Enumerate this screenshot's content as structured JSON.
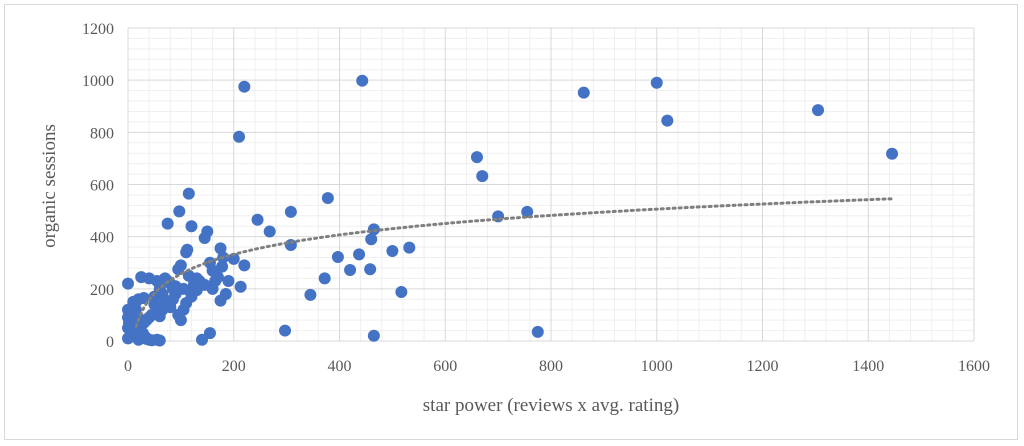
{
  "chart_data": {
    "type": "scatter",
    "title": "",
    "xlabel": "star power (reviews x avg. rating)",
    "ylabel": "organic sessions",
    "xlim": [
      0,
      1600
    ],
    "ylim": [
      0,
      1200
    ],
    "x_ticks": [
      0,
      200,
      400,
      600,
      800,
      1000,
      1200,
      1400,
      1600
    ],
    "y_ticks": [
      0,
      200,
      400,
      600,
      800,
      1000,
      1200
    ],
    "x_tick_labels": [
      "0",
      "200",
      "400",
      "600",
      "800",
      "1000",
      "1200",
      "1400",
      "1600"
    ],
    "y_tick_labels": [
      "0",
      "200",
      "400",
      "600",
      "800",
      "1000",
      "1200"
    ],
    "grid": true,
    "legend": "none",
    "colors": {
      "points": "#4472c4",
      "trendline": "#7f7f7f",
      "grid": "#d9d9d9"
    },
    "trendline": {
      "type": "logarithmic",
      "style": "dotted",
      "x_range": [
        0,
        1445
      ]
    },
    "points": [
      [
        1305,
        885
      ],
      [
        1445,
        718
      ],
      [
        1000,
        990
      ],
      [
        1020,
        845
      ],
      [
        862,
        952
      ],
      [
        660,
        705
      ],
      [
        670,
        632
      ],
      [
        700,
        478
      ],
      [
        755,
        495
      ],
      [
        775,
        35
      ],
      [
        443,
        998
      ],
      [
        220,
        975
      ],
      [
        210,
        783
      ],
      [
        115,
        565
      ],
      [
        378,
        548
      ],
      [
        245,
        465
      ],
      [
        268,
        420
      ],
      [
        308,
        495
      ],
      [
        308,
        368
      ],
      [
        345,
        177
      ],
      [
        297,
        40
      ],
      [
        372,
        240
      ],
      [
        397,
        322
      ],
      [
        420,
        272
      ],
      [
        437,
        332
      ],
      [
        458,
        275
      ],
      [
        460,
        390
      ],
      [
        465,
        428
      ],
      [
        465,
        20
      ],
      [
        500,
        345
      ],
      [
        517,
        188
      ],
      [
        532,
        358
      ],
      [
        220,
        290
      ],
      [
        213,
        208
      ],
      [
        200,
        315
      ],
      [
        180,
        320
      ],
      [
        175,
        355
      ],
      [
        185,
        180
      ],
      [
        175,
        155
      ],
      [
        178,
        285
      ],
      [
        160,
        270
      ],
      [
        155,
        300
      ],
      [
        150,
        420
      ],
      [
        145,
        395
      ],
      [
        120,
        440
      ],
      [
        97,
        497
      ],
      [
        75,
        450
      ],
      [
        110,
        340
      ],
      [
        112,
        350
      ],
      [
        95,
        275
      ],
      [
        100,
        290
      ],
      [
        130,
        240
      ],
      [
        125,
        220
      ],
      [
        120,
        185
      ],
      [
        105,
        200
      ],
      [
        90,
        180
      ],
      [
        85,
        160
      ],
      [
        80,
        130
      ],
      [
        70,
        150
      ],
      [
        65,
        120
      ],
      [
        55,
        110
      ],
      [
        60,
        95
      ],
      [
        50,
        140
      ],
      [
        45,
        100
      ],
      [
        40,
        90
      ],
      [
        35,
        80
      ],
      [
        30,
        70
      ],
      [
        25,
        60
      ],
      [
        22,
        85
      ],
      [
        18,
        50
      ],
      [
        15,
        40
      ],
      [
        12,
        35
      ],
      [
        10,
        30
      ],
      [
        8,
        25
      ],
      [
        5,
        20
      ],
      [
        3,
        15
      ],
      [
        0,
        10
      ],
      [
        0,
        50
      ],
      [
        0,
        90
      ],
      [
        0,
        120
      ],
      [
        0,
        220
      ],
      [
        5,
        105
      ],
      [
        8,
        110
      ],
      [
        12,
        130
      ],
      [
        15,
        150
      ],
      [
        20,
        160
      ],
      [
        25,
        245
      ],
      [
        30,
        165
      ],
      [
        40,
        240
      ],
      [
        50,
        170
      ],
      [
        55,
        230
      ],
      [
        60,
        200
      ],
      [
        65,
        180
      ],
      [
        70,
        240
      ],
      [
        75,
        230
      ],
      [
        80,
        220
      ],
      [
        85,
        200
      ],
      [
        90,
        210
      ],
      [
        95,
        100
      ],
      [
        100,
        80
      ],
      [
        105,
        120
      ],
      [
        110,
        145
      ],
      [
        115,
        250
      ],
      [
        120,
        170
      ],
      [
        125,
        215
      ],
      [
        130,
        195
      ],
      [
        135,
        230
      ],
      [
        140,
        5
      ],
      [
        145,
        215
      ],
      [
        155,
        30
      ],
      [
        160,
        200
      ],
      [
        165,
        230
      ],
      [
        170,
        245
      ],
      [
        190,
        230
      ],
      [
        35,
        8
      ],
      [
        40,
        5
      ],
      [
        45,
        3
      ],
      [
        55,
        5
      ],
      [
        60,
        2
      ],
      [
        20,
        5
      ],
      [
        28,
        30
      ],
      [
        33,
        15
      ],
      [
        10,
        65
      ],
      [
        6,
        45
      ],
      [
        2,
        70
      ],
      [
        18,
        95
      ],
      [
        15,
        120
      ],
      [
        10,
        150
      ]
    ]
  }
}
